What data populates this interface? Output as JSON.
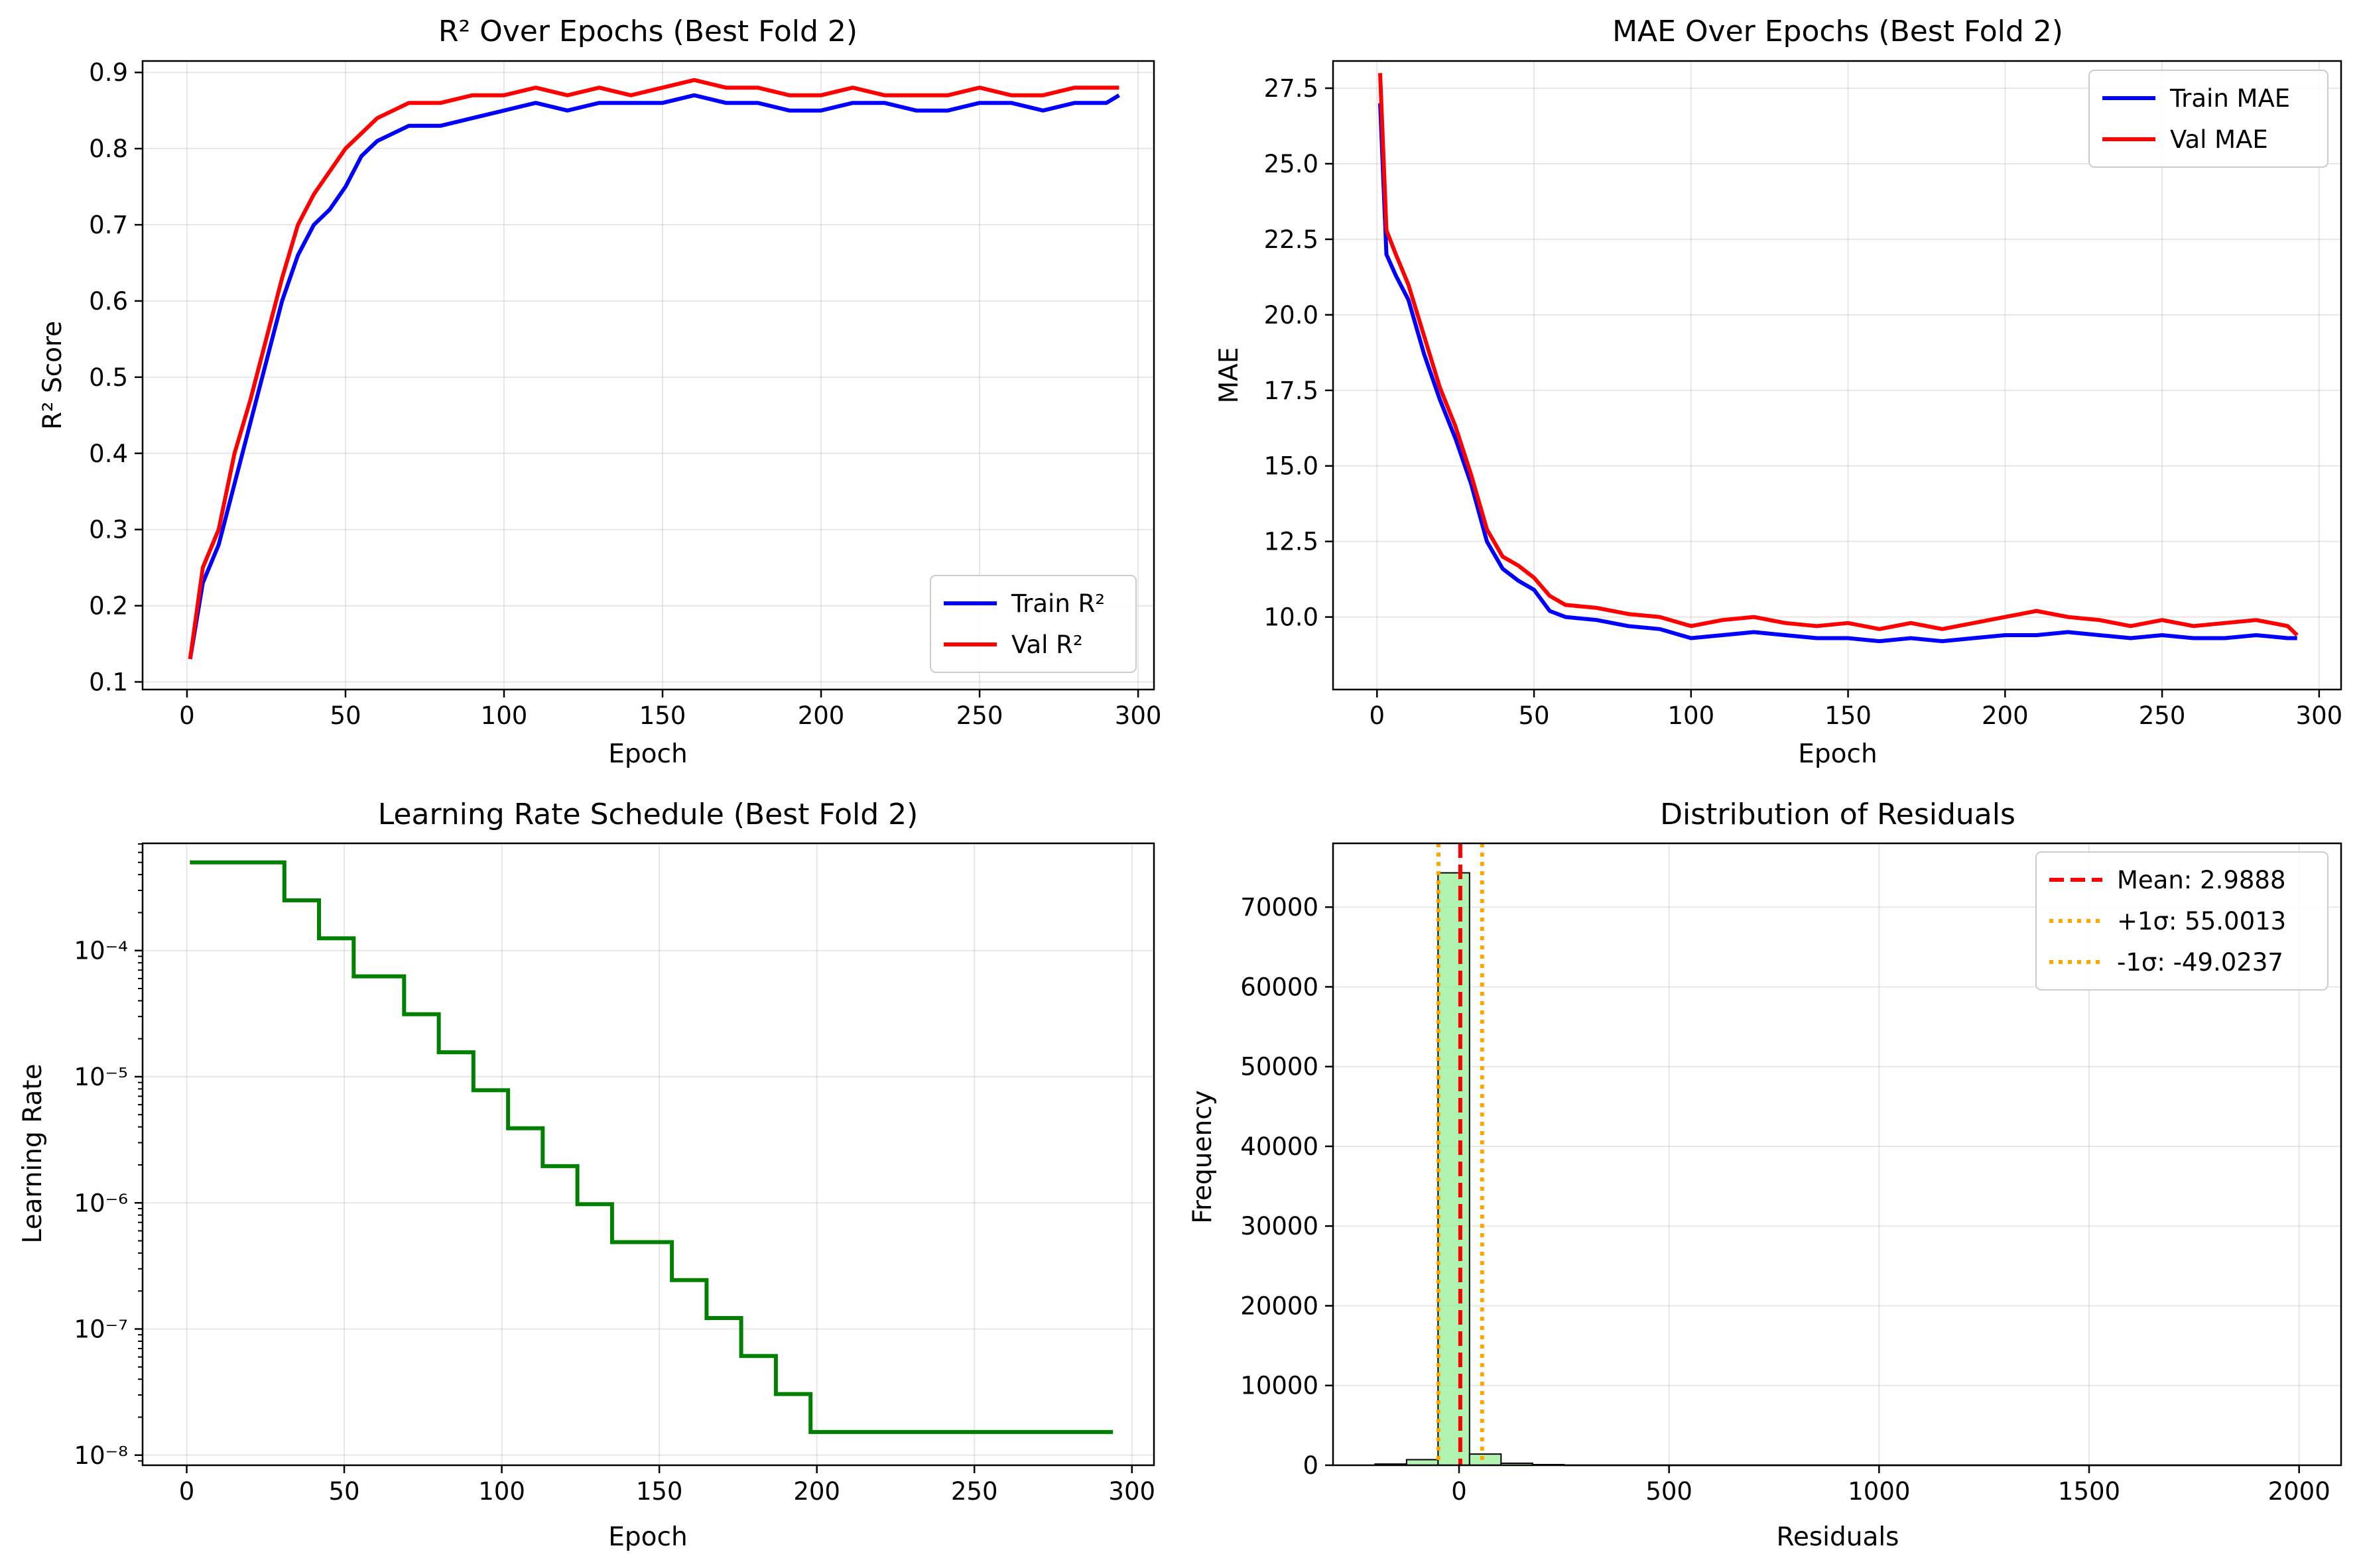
{
  "chart_data": [
    {
      "type": "line",
      "title": "R² Over Epochs (Best Fold 2)",
      "xlabel": "Epoch",
      "ylabel": "R² Score",
      "xlim": [
        -14,
        305
      ],
      "ylim": [
        0.09,
        0.915
      ],
      "xticks": [
        0,
        50,
        100,
        150,
        200,
        250,
        300
      ],
      "yticks": [
        0.1,
        0.2,
        0.3,
        0.4,
        0.5,
        0.6,
        0.7,
        0.8,
        0.9
      ],
      "grid": true,
      "legend": "lower right",
      "series": [
        {
          "name": "Train R²",
          "color": "#0000ff",
          "x": [
            1,
            5,
            10,
            15,
            20,
            25,
            30,
            35,
            40,
            45,
            50,
            55,
            60,
            70,
            80,
            90,
            100,
            110,
            120,
            130,
            140,
            150,
            160,
            170,
            180,
            190,
            200,
            210,
            220,
            230,
            240,
            250,
            260,
            270,
            280,
            290,
            294
          ],
          "y": [
            0.13,
            0.23,
            0.28,
            0.36,
            0.44,
            0.52,
            0.6,
            0.66,
            0.7,
            0.72,
            0.75,
            0.79,
            0.81,
            0.83,
            0.83,
            0.84,
            0.85,
            0.86,
            0.85,
            0.86,
            0.86,
            0.86,
            0.87,
            0.86,
            0.86,
            0.85,
            0.85,
            0.86,
            0.86,
            0.85,
            0.85,
            0.86,
            0.86,
            0.85,
            0.86,
            0.86,
            0.87
          ]
        },
        {
          "name": "Val R²",
          "color": "#ff0000",
          "x": [
            1,
            5,
            10,
            15,
            20,
            25,
            30,
            35,
            40,
            45,
            50,
            55,
            60,
            70,
            80,
            90,
            100,
            110,
            120,
            130,
            140,
            150,
            160,
            170,
            180,
            190,
            200,
            210,
            220,
            230,
            240,
            250,
            260,
            270,
            280,
            290,
            294
          ],
          "y": [
            0.13,
            0.25,
            0.3,
            0.4,
            0.47,
            0.55,
            0.63,
            0.7,
            0.74,
            0.77,
            0.8,
            0.82,
            0.84,
            0.86,
            0.86,
            0.87,
            0.87,
            0.88,
            0.87,
            0.88,
            0.87,
            0.88,
            0.89,
            0.88,
            0.88,
            0.87,
            0.87,
            0.88,
            0.87,
            0.87,
            0.87,
            0.88,
            0.87,
            0.87,
            0.88,
            0.88,
            0.88
          ]
        }
      ]
    },
    {
      "type": "line",
      "title": "MAE Over Epochs (Best Fold 2)",
      "xlabel": "Epoch",
      "ylabel": "MAE",
      "xlim": [
        -14,
        307
      ],
      "ylim": [
        7.6,
        28.4
      ],
      "xticks": [
        0,
        50,
        100,
        150,
        200,
        250,
        300
      ],
      "yticks": [
        10.0,
        12.5,
        15.0,
        17.5,
        20.0,
        22.5,
        25.0,
        27.5
      ],
      "ytick_labels": [
        "10.0",
        "12.5",
        "15.0",
        "17.5",
        "20.0",
        "22.5",
        "25.0",
        "27.5"
      ],
      "grid": true,
      "legend": "upper right",
      "series": [
        {
          "name": "Train MAE",
          "color": "#0000ff",
          "x": [
            1,
            3,
            6,
            10,
            15,
            20,
            25,
            30,
            35,
            40,
            45,
            50,
            55,
            60,
            70,
            80,
            90,
            100,
            110,
            120,
            130,
            140,
            150,
            160,
            170,
            180,
            190,
            200,
            210,
            220,
            230,
            240,
            250,
            260,
            270,
            280,
            290,
            293
          ],
          "y": [
            27.0,
            22.0,
            21.3,
            20.5,
            18.7,
            17.2,
            15.9,
            14.4,
            12.5,
            11.6,
            11.2,
            10.9,
            10.2,
            10.0,
            9.9,
            9.7,
            9.6,
            9.3,
            9.4,
            9.5,
            9.4,
            9.3,
            9.3,
            9.2,
            9.3,
            9.2,
            9.3,
            9.4,
            9.4,
            9.5,
            9.4,
            9.3,
            9.4,
            9.3,
            9.3,
            9.4,
            9.3,
            9.3
          ]
        },
        {
          "name": "Val MAE",
          "color": "#ff0000",
          "x": [
            1,
            3,
            6,
            10,
            15,
            20,
            25,
            30,
            35,
            40,
            45,
            50,
            55,
            60,
            70,
            80,
            90,
            100,
            110,
            120,
            130,
            140,
            150,
            160,
            170,
            180,
            190,
            200,
            210,
            220,
            230,
            240,
            250,
            260,
            270,
            280,
            290,
            293
          ],
          "y": [
            28.0,
            22.8,
            22.0,
            21.0,
            19.3,
            17.6,
            16.3,
            14.7,
            12.9,
            12.0,
            11.7,
            11.3,
            10.7,
            10.4,
            10.3,
            10.1,
            10.0,
            9.7,
            9.9,
            10.0,
            9.8,
            9.7,
            9.8,
            9.6,
            9.8,
            9.6,
            9.8,
            10.0,
            10.2,
            10.0,
            9.9,
            9.7,
            9.9,
            9.7,
            9.8,
            9.9,
            9.7,
            9.4
          ]
        }
      ]
    },
    {
      "type": "line",
      "title": "Learning Rate Schedule (Best Fold 2)",
      "xlabel": "Epoch",
      "ylabel": "Learning Rate",
      "yscale": "log",
      "xlim": [
        -14,
        307
      ],
      "ylim_log10": [
        -8.08,
        -7.09
      ],
      "xticks": [
        0,
        50,
        100,
        150,
        200,
        250,
        300
      ],
      "yticks_exp": [
        -8,
        -7,
        -6,
        -5,
        -4
      ],
      "ytick_labels": [
        "10⁻⁸",
        "10⁻⁷",
        "10⁻⁶",
        "10⁻⁵",
        "10⁻⁴"
      ],
      "grid": true,
      "series": [
        {
          "name": "",
          "color": "#008000",
          "steps": [
            {
              "x0": 1,
              "x1": 31,
              "lr": 0.0005
            },
            {
              "x0": 31,
              "x1": 42,
              "lr": 0.00025
            },
            {
              "x0": 42,
              "x1": 53,
              "lr": 0.000125
            },
            {
              "x0": 53,
              "x1": 69,
              "lr": 6.25e-05
            },
            {
              "x0": 69,
              "x1": 80,
              "lr": 3.125e-05
            },
            {
              "x0": 80,
              "x1": 91,
              "lr": 1.5625e-05
            },
            {
              "x0": 91,
              "x1": 102,
              "lr": 7.8125e-06
            },
            {
              "x0": 102,
              "x1": 113,
              "lr": 3.90625e-06
            },
            {
              "x0": 113,
              "x1": 124,
              "lr": 1.953125e-06
            },
            {
              "x0": 124,
              "x1": 135,
              "lr": 9.765625e-07
            },
            {
              "x0": 135,
              "x1": 154,
              "lr": 4.8828125e-07
            },
            {
              "x0": 154,
              "x1": 165,
              "lr": 2.44140625e-07
            },
            {
              "x0": 165,
              "x1": 176,
              "lr": 1.220703125e-07
            },
            {
              "x0": 176,
              "x1": 187,
              "lr": 6.103515625e-08
            },
            {
              "x0": 187,
              "x1": 198,
              "lr": 3.0517578125e-08
            },
            {
              "x0": 198,
              "x1": 294,
              "lr": 1.52587890625e-08
            }
          ]
        }
      ]
    },
    {
      "type": "bar",
      "title": "Distribution of Residuals",
      "xlabel": "Residuals",
      "ylabel": "Frequency",
      "xlim": [
        -300,
        2100
      ],
      "ylim": [
        0,
        78000
      ],
      "xticks": [
        0,
        500,
        1000,
        1500,
        2000
      ],
      "yticks": [
        0,
        10000,
        20000,
        30000,
        40000,
        50000,
        60000,
        70000
      ],
      "grid": true,
      "legend": "upper right",
      "bar_color": "#90ee90",
      "bins": [
        {
          "x0": -200,
          "x1": -125,
          "count": 150
        },
        {
          "x0": -125,
          "x1": -50,
          "count": 700
        },
        {
          "x0": -50,
          "x1": 25,
          "count": 74300
        },
        {
          "x0": 25,
          "x1": 100,
          "count": 1400
        },
        {
          "x0": 100,
          "x1": 175,
          "count": 250
        },
        {
          "x0": 175,
          "x1": 250,
          "count": 80
        },
        {
          "x0": 250,
          "x1": 2000,
          "count": 15
        }
      ],
      "lines": [
        {
          "label": "Mean: 2.9888",
          "x": 2.9888,
          "color": "#ff0000",
          "style": "dashed"
        },
        {
          "label": "+1σ: 55.0013",
          "x": 55.0013,
          "color": "#ffa500",
          "style": "dotted"
        },
        {
          "label": "-1σ: -49.0237",
          "x": -49.0237,
          "color": "#ffa500",
          "style": "dotted"
        }
      ]
    }
  ]
}
